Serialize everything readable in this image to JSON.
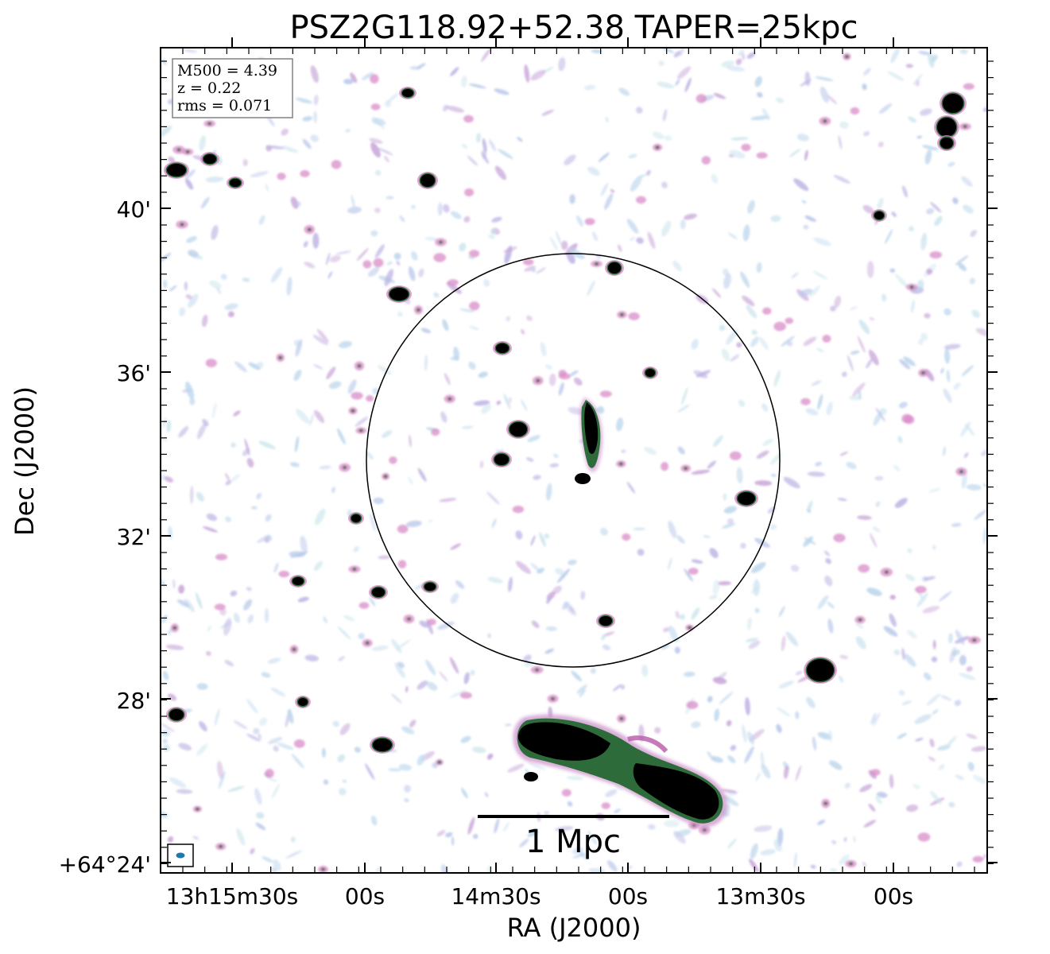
{
  "title": "PSZ2G118.92+52.38 TAPER=25kpc",
  "xlabel": "RA (J2000)",
  "ylabel": "Dec (J2000)",
  "x_ticks": [
    "13h15m30s",
    "00s",
    "14m30s",
    "00s",
    "13m30s",
    "00s"
  ],
  "y_ticks": [
    "40'",
    "36'",
    "32'",
    "28'",
    "+64°24'"
  ],
  "info_box": [
    "M500 = 4.39",
    "z = 0.22",
    "rms = 0.071"
  ],
  "scale_bar_label": "1 Mpc",
  "colors": {
    "noise_light": "#bcd6ec",
    "noise_mid": "#c8a6d8",
    "noise_pink": "#d88cc8",
    "source_core": "#000000",
    "source_rim": "#2e6b3a",
    "beam": "#1f77b4",
    "frame": "#000000"
  }
}
